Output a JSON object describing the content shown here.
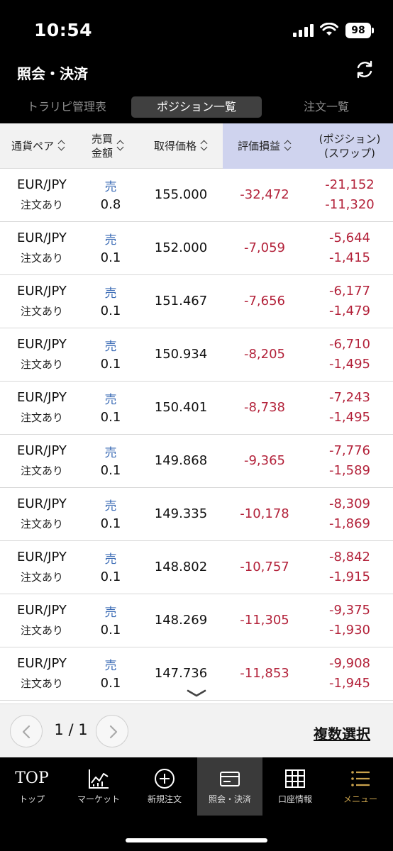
{
  "status": {
    "time": "10:54",
    "battery": "98"
  },
  "header": {
    "title": "照会・決済"
  },
  "tabs": [
    "トラリピ管理表",
    "ポジション一覧",
    "注文一覧"
  ],
  "columns": {
    "pair": "通貨ペア",
    "side_line1": "売買",
    "side_line2": "金額",
    "price": "取得価格",
    "pl": "評価損益",
    "pos_line1": "(ポジション)",
    "pos_line2": "(スワップ)"
  },
  "rows": [
    {
      "pair": "EUR/JPY",
      "note": "注文あり",
      "side": "売",
      "amount": "0.8",
      "price": "155.000",
      "pl": "-32,472",
      "position": "-21,152",
      "swap": "-11,320"
    },
    {
      "pair": "EUR/JPY",
      "note": "注文あり",
      "side": "売",
      "amount": "0.1",
      "price": "152.000",
      "pl": "-7,059",
      "position": "-5,644",
      "swap": "-1,415"
    },
    {
      "pair": "EUR/JPY",
      "note": "注文あり",
      "side": "売",
      "amount": "0.1",
      "price": "151.467",
      "pl": "-7,656",
      "position": "-6,177",
      "swap": "-1,479"
    },
    {
      "pair": "EUR/JPY",
      "note": "注文あり",
      "side": "売",
      "amount": "0.1",
      "price": "150.934",
      "pl": "-8,205",
      "position": "-6,710",
      "swap": "-1,495"
    },
    {
      "pair": "EUR/JPY",
      "note": "注文あり",
      "side": "売",
      "amount": "0.1",
      "price": "150.401",
      "pl": "-8,738",
      "position": "-7,243",
      "swap": "-1,495"
    },
    {
      "pair": "EUR/JPY",
      "note": "注文あり",
      "side": "売",
      "amount": "0.1",
      "price": "149.868",
      "pl": "-9,365",
      "position": "-7,776",
      "swap": "-1,589"
    },
    {
      "pair": "EUR/JPY",
      "note": "注文あり",
      "side": "売",
      "amount": "0.1",
      "price": "149.335",
      "pl": "-10,178",
      "position": "-8,309",
      "swap": "-1,869"
    },
    {
      "pair": "EUR/JPY",
      "note": "注文あり",
      "side": "売",
      "amount": "0.1",
      "price": "148.802",
      "pl": "-10,757",
      "position": "-8,842",
      "swap": "-1,915"
    },
    {
      "pair": "EUR/JPY",
      "note": "注文あり",
      "side": "売",
      "amount": "0.1",
      "price": "148.269",
      "pl": "-11,305",
      "position": "-9,375",
      "swap": "-1,930"
    },
    {
      "pair": "EUR/JPY",
      "note": "注文あり",
      "side": "売",
      "amount": "0.1",
      "price": "147.736",
      "pl": "-11,853",
      "position": "-9,908",
      "swap": "-1,945"
    }
  ],
  "pager": {
    "page": "1 / 1",
    "multi_select": "複数選択"
  },
  "nav": {
    "top_text": "TOP",
    "items": [
      "トップ",
      "マーケット",
      "新規注文",
      "照会・決済",
      "口座情報",
      "メニュー"
    ]
  },
  "colors": {
    "negative": "#b3223a",
    "sell": "#3b6bb5",
    "highlight_header": "#cfd3ee",
    "menu_gold": "#c9a24c"
  },
  "icons": [
    "signal-icon",
    "wifi-icon",
    "battery-icon",
    "refresh-icon",
    "sort-icon",
    "chevron-down-icon",
    "chevron-left-icon",
    "chevron-right-icon",
    "chart-icon",
    "plus-circle-icon",
    "card-icon",
    "grid-icon",
    "menu-icon"
  ]
}
